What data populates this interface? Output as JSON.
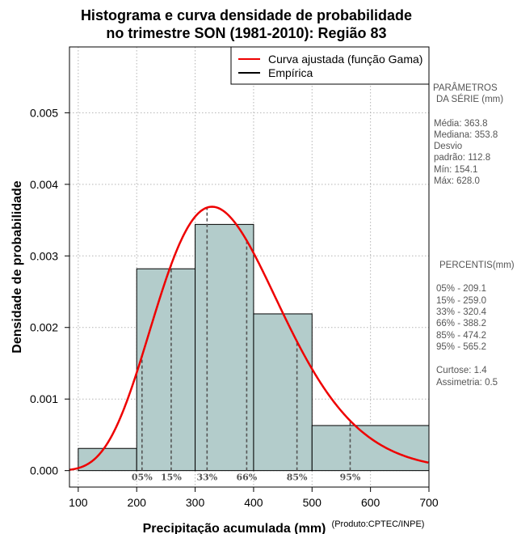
{
  "chart_data": {
    "type": "histogram",
    "title_line1": "Histograma e curva densidade de probabilidade",
    "title_line2": "no trimestre SON (1981-2010): Região 83",
    "xlabel": "Precipitação acumulada (mm)",
    "ylabel": "Densidade de probabilidade",
    "credit": "(Produto:CPTEC/INPE)",
    "xlim": [
      85,
      700
    ],
    "ylim": [
      -0.00023,
      0.00592
    ],
    "x_ticks": [
      100,
      200,
      300,
      400,
      500,
      600,
      700
    ],
    "x_tick_labels": [
      "100",
      "200",
      "300",
      "400",
      "500",
      "600",
      "700"
    ],
    "y_ticks": [
      0,
      0.001,
      0.002,
      0.003,
      0.004,
      0.005
    ],
    "y_tick_labels": [
      "0.000",
      "0.001",
      "0.002",
      "0.003",
      "0.004",
      "0.005"
    ],
    "grid": true,
    "bars": [
      {
        "x0": 100,
        "x1": 200,
        "value": 0.00031
      },
      {
        "x0": 200,
        "x1": 300,
        "value": 0.00282
      },
      {
        "x0": 300,
        "x1": 400,
        "value": 0.00344
      },
      {
        "x0": 400,
        "x1": 500,
        "value": 0.00219
      },
      {
        "x0": 500,
        "x1": 700,
        "value": 0.00063
      }
    ],
    "bar_color": "#b3cccb",
    "gamma_fit": {
      "shape": 10.4,
      "mean": 363.8
    },
    "curve_color": "#ee0000",
    "percentiles": [
      {
        "label": "05%",
        "x": 209.1
      },
      {
        "label": "15%",
        "x": 259.0
      },
      {
        "label": "33%",
        "x": 320.4
      },
      {
        "label": "66%",
        "x": 388.2
      },
      {
        "label": "85%",
        "x": 474.2
      },
      {
        "label": "95%",
        "x": 565.2
      }
    ],
    "legend": [
      {
        "label": "Curva ajustada (função Gama)",
        "color": "#ee0000"
      },
      {
        "label": "Empírica",
        "color": "#000000"
      }
    ]
  },
  "stats_panel": {
    "header_line1": "PARÂMETROS",
    "header_line2": "DA SÉRIE (mm)",
    "media": "Média:  363.8",
    "mediana": "Mediana:  353.8",
    "desvio_line1": "Desvio",
    "desvio_line2": "padrão:  112.8",
    "min": "Mín:  154.1",
    "max": "Máx:  628.0"
  },
  "percentis_panel": {
    "header": "PERCENTIS(mm)",
    "rows": [
      "05% -   209.1",
      "15% -   259.0",
      "33% -   320.4",
      "66% -   388.2",
      "85% -   474.2",
      "95% -   565.2"
    ],
    "curtose": "Curtose:  1.4",
    "assimetria": "Assimetria:  0.5"
  }
}
